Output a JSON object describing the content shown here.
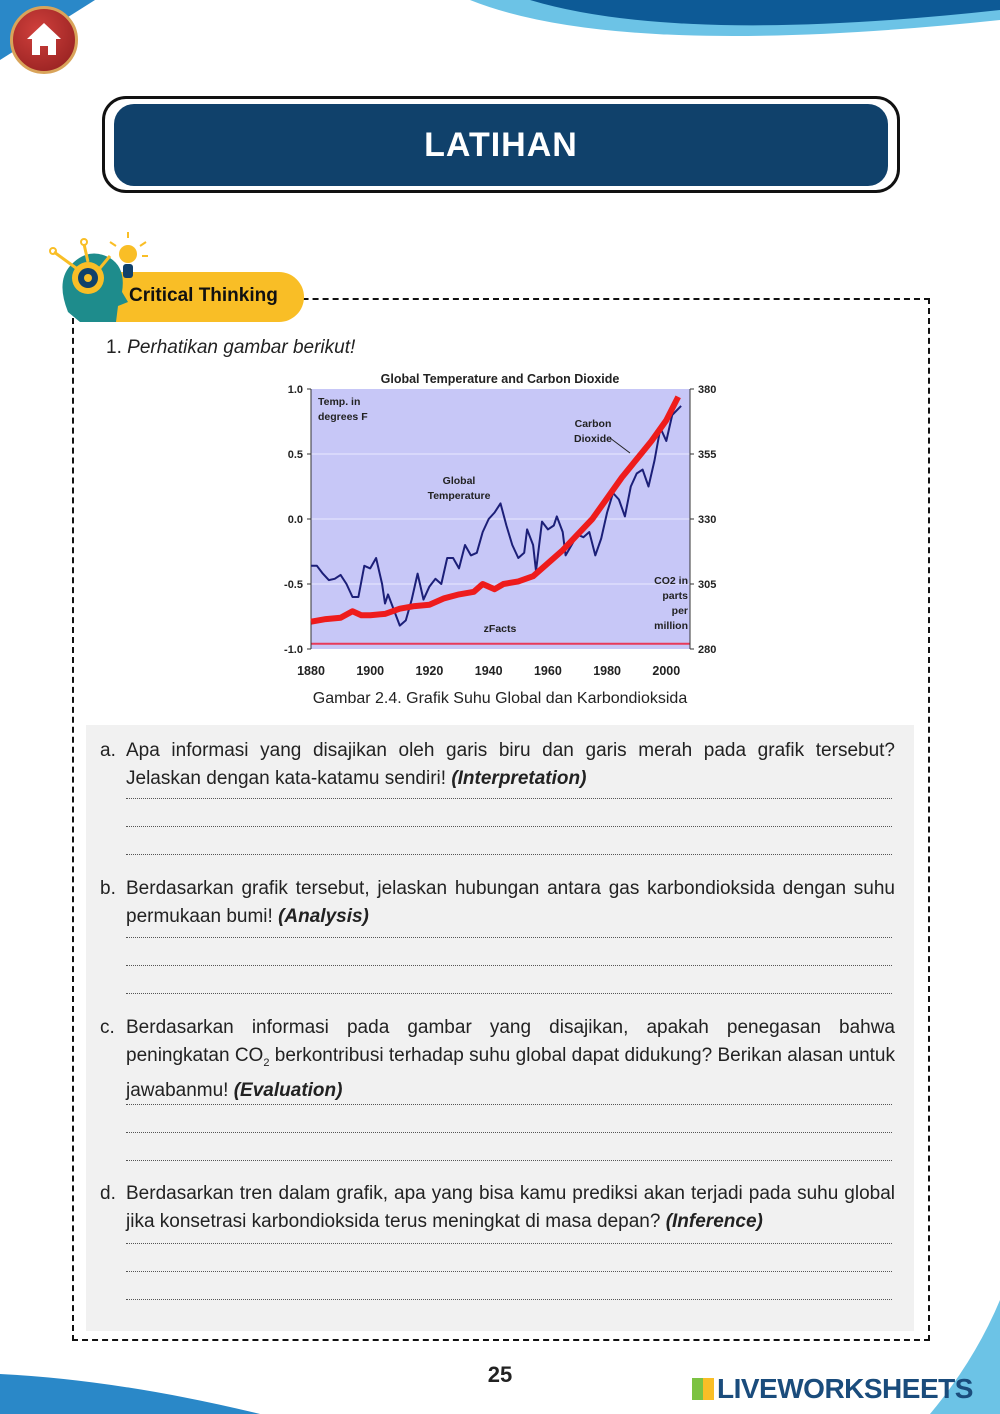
{
  "header": {
    "title": "LATIHAN",
    "home_icon": "home-icon"
  },
  "section": {
    "label": "Critical Thinking"
  },
  "question1": {
    "number": "1.",
    "prompt": "Perhatikan gambar berikut!"
  },
  "figure": {
    "caption": "Gambar 2.4. Grafik Suhu Global dan Karbondioksida"
  },
  "chart_data": {
    "type": "line",
    "title": "Global Temperature and Carbon Dioxide",
    "ylabel_left": "Temp. in degrees F",
    "ylabel_right": "CO2 in parts per million",
    "watermark": "zFacts",
    "ylim_left": [
      -1.0,
      1.0
    ],
    "ylim_right": [
      280,
      380
    ],
    "xlim": [
      1880,
      2008
    ],
    "x_ticks": [
      "1880",
      "1900",
      "1920",
      "1940",
      "1960",
      "1980",
      "2000"
    ],
    "y_ticks_left": [
      "1.0",
      "0.5",
      "0.0",
      "-0.5",
      "-1.0"
    ],
    "y_ticks_right": [
      "380",
      "355",
      "330",
      "305",
      "280"
    ],
    "annotations": {
      "temp": [
        "Global",
        "Temperature"
      ],
      "co2": [
        "Carbon",
        "Dioxide"
      ],
      "co2_axis": [
        "CO2 in",
        "parts",
        "per",
        "million"
      ],
      "temp_axis": [
        "Temp. in",
        "degrees F"
      ]
    },
    "series": [
      {
        "name": "Global Temperature",
        "color": "#1c1f78",
        "axis": "left",
        "x": [
          1880,
          1882,
          1884,
          1886,
          1888,
          1890,
          1892,
          1894,
          1896,
          1898,
          1900,
          1902,
          1904,
          1905,
          1906,
          1908,
          1910,
          1912,
          1914,
          1916,
          1918,
          1920,
          1922,
          1924,
          1926,
          1928,
          1930,
          1932,
          1934,
          1936,
          1938,
          1940,
          1942,
          1944,
          1946,
          1948,
          1950,
          1952,
          1953,
          1955,
          1956,
          1958,
          1960,
          1962,
          1963,
          1965,
          1966,
          1968,
          1970,
          1972,
          1974,
          1976,
          1978,
          1980,
          1982,
          1984,
          1986,
          1988,
          1990,
          1992,
          1994,
          1996,
          1998,
          2000,
          2002,
          2005
        ],
        "values": [
          -0.36,
          -0.36,
          -0.42,
          -0.47,
          -0.46,
          -0.43,
          -0.5,
          -0.6,
          -0.6,
          -0.36,
          -0.38,
          -0.3,
          -0.5,
          -0.65,
          -0.58,
          -0.7,
          -0.82,
          -0.78,
          -0.62,
          -0.42,
          -0.62,
          -0.52,
          -0.46,
          -0.5,
          -0.3,
          -0.3,
          -0.38,
          -0.2,
          -0.28,
          -0.26,
          -0.1,
          0.0,
          0.05,
          0.12,
          -0.05,
          -0.2,
          -0.3,
          -0.26,
          -0.08,
          -0.2,
          -0.4,
          -0.02,
          -0.08,
          -0.05,
          0.02,
          -0.1,
          -0.28,
          -0.2,
          -0.12,
          -0.14,
          -0.1,
          -0.28,
          -0.15,
          0.05,
          0.2,
          0.15,
          0.02,
          0.25,
          0.35,
          0.38,
          0.25,
          0.45,
          0.7,
          0.6,
          0.8,
          0.87
        ]
      },
      {
        "name": "Carbon Dioxide",
        "color": "#ee1c1c",
        "axis": "right",
        "x": [
          1880,
          1885,
          1890,
          1894,
          1897,
          1900,
          1905,
          1910,
          1915,
          1920,
          1925,
          1930,
          1935,
          1938,
          1942,
          1945,
          1950,
          1955,
          1960,
          1965,
          1970,
          1975,
          1980,
          1985,
          1990,
          1995,
          2000,
          2004
        ],
        "values": [
          290.5,
          291.5,
          292,
          294.5,
          293,
          293,
          293.5,
          295.5,
          296.5,
          297,
          299.5,
          301,
          302,
          305,
          303,
          305,
          306,
          308,
          313,
          318,
          324,
          330,
          338,
          346,
          353,
          360,
          368,
          377
        ]
      }
    ]
  },
  "questions": [
    {
      "label": "a.",
      "text": "Apa informasi yang disajikan oleh garis biru dan garis merah pada grafik tersebut? Jelaskan dengan kata-katamu sendiri!",
      "tag": "(Interpretation)"
    },
    {
      "label": "b.",
      "text": "Berdasarkan grafik tersebut, jelaskan hubungan antara gas karbondioksida dengan suhu permukaan bumi!",
      "tag": "(Analysis)"
    },
    {
      "label": "c.",
      "text_pre": "Berdasarkan informasi pada gambar yang disajikan, apakah penegasan bahwa peningkatan CO",
      "sub": "2",
      "text_post": " berkontribusi terhadap suhu global dapat didukung? Berikan alasan untuk jawabanmu!",
      "tag": "(Evaluation)"
    },
    {
      "label": "d.",
      "text": "Berdasarkan tren dalam grafik, apa yang bisa kamu prediksi akan terjadi pada suhu global jika konsetrasi karbondioksida terus meningkat di masa depan?",
      "tag": "(Inference)"
    }
  ],
  "footer": {
    "page": "25",
    "brand": "LIVEWORKSHEETS"
  }
}
